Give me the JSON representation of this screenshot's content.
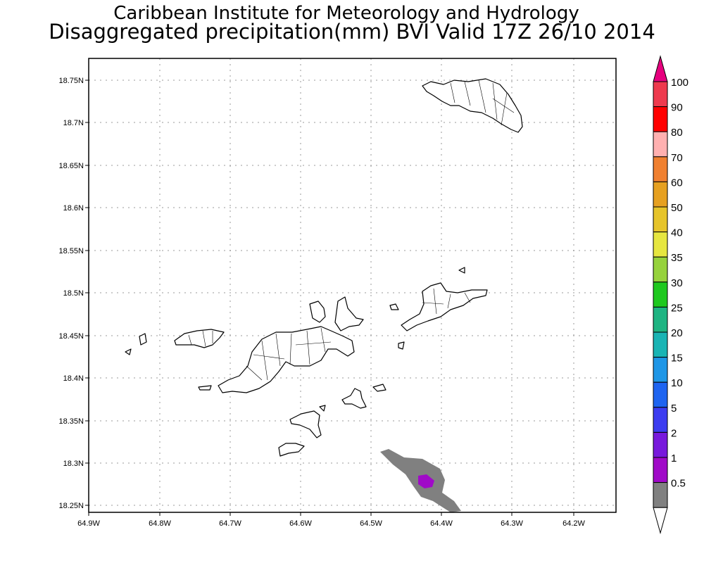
{
  "title_line1": "Caribbean Institute for Meteorology and Hydrology",
  "title_line2": "Disaggregated precipitation(mm) BVI Valid 17Z 26/10 2014",
  "x_ticks": [
    "64.9W",
    "64.8W",
    "64.7W",
    "64.6W",
    "64.5W",
    "64.4W",
    "64.3W",
    "64.2W"
  ],
  "y_ticks": [
    "18.75N",
    "18.7N",
    "18.65N",
    "18.6N",
    "18.55N",
    "18.5N",
    "18.45N",
    "18.4N",
    "18.35N",
    "18.3N",
    "18.25N"
  ],
  "colorbar": {
    "labels": [
      "100",
      "90",
      "80",
      "70",
      "60",
      "50",
      "40",
      "35",
      "30",
      "25",
      "20",
      "15",
      "10",
      "5",
      "2",
      "1",
      "0.5"
    ],
    "colors": [
      "#e6007e",
      "#ee3a4e",
      "#ff0000",
      "#ffb0b0",
      "#f08030",
      "#e6a020",
      "#e6c42a",
      "#e6e640",
      "#96d23c",
      "#1ec81e",
      "#1eb482",
      "#19b4b4",
      "#1e96e6",
      "#1e64f0",
      "#3c3cf0",
      "#7819dc",
      "#a00ac8",
      "#808080",
      "#ffffff"
    ]
  },
  "precip_areas": [
    {
      "amount": "0.5-1",
      "color": "#808080"
    },
    {
      "amount": "1-2",
      "color": "#a00ac8"
    }
  ]
}
